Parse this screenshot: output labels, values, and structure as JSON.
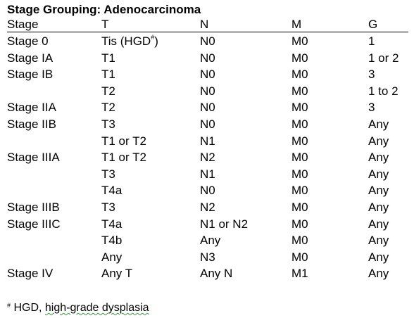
{
  "title": "Stage Grouping: Adenocarcinoma",
  "columns": [
    "Stage",
    "T",
    "N",
    "M",
    "G"
  ],
  "rows": [
    {
      "stage": "Stage 0",
      "t": "Tis (HGD",
      "t_mark": "#",
      "t_suffix": ")",
      "n": "N0",
      "m": "M0",
      "g": "1"
    },
    {
      "stage": "Stage IA",
      "t": "T1",
      "n": "N0",
      "m": "M0",
      "g": "1 or 2"
    },
    {
      "stage": "Stage IB",
      "t": "T1",
      "n": "N0",
      "m": "M0",
      "g": "3"
    },
    {
      "stage": "",
      "t": "T2",
      "n": "N0",
      "m": "M0",
      "g": "1 to 2"
    },
    {
      "stage": "Stage IIA",
      "t": "T2",
      "n": "N0",
      "m": "M0",
      "g": "3"
    },
    {
      "stage": "Stage IIB",
      "t": "T3",
      "n": "N0",
      "m": "M0",
      "g": "Any"
    },
    {
      "stage": "",
      "t": "T1  or T2",
      "n": "N1",
      "m": "M0",
      "g": "Any"
    },
    {
      "stage": "Stage IIIA",
      "t": "T1  or T2",
      "n": "N2",
      "m": "M0",
      "g": "Any"
    },
    {
      "stage": "",
      "t": "T3",
      "n": "N1",
      "m": "M0",
      "g": "Any"
    },
    {
      "stage": "",
      "t": "T4a",
      "n": "N0",
      "m": "M0",
      "g": "Any"
    },
    {
      "stage": "Stage IIIB",
      "t": "T3",
      "n": "N2",
      "m": "M0",
      "g": "Any"
    },
    {
      "stage": "Stage IIIC",
      "t": "T4a",
      "n": "N1 or N2",
      "m": "M0",
      "g": "Any"
    },
    {
      "stage": "",
      "t": "T4b",
      "n": "Any",
      "m": "M0",
      "g": "Any"
    },
    {
      "stage": "",
      "t": "Any",
      "n": "N3",
      "m": "M0",
      "g": "Any"
    },
    {
      "stage": "Stage IV",
      "t": "Any T",
      "n": "Any N",
      "m": "M1",
      "g": "Any"
    }
  ],
  "footnote": {
    "mark": "#",
    "text_before": " HGD, ",
    "text_underlined": "high-grade dysplasia"
  }
}
